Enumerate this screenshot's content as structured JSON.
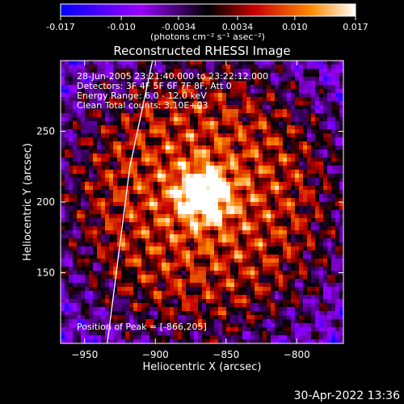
{
  "chart_data": {
    "type": "heatmap",
    "title": "Reconstructed RHESSI Image",
    "xlabel": "Heliocentric X (arcsec)",
    "ylabel": "Heliocentric Y (arcsec)",
    "xlim": [
      -967,
      -767
    ],
    "ylim": [
      100,
      300
    ],
    "xticks": [
      -950,
      -900,
      -850,
      -800
    ],
    "yticks": [
      150,
      200,
      250
    ],
    "colorbar": {
      "ticks": [
        "-0.017",
        "-0.010",
        "-0.0034",
        "0.0034",
        "0.010",
        "0.017"
      ],
      "range": [
        -0.017,
        0.017
      ],
      "unit_label": "(photons cm⁻² s⁻¹ asec⁻²)"
    },
    "annotations": [
      "28-Jun-2005 23:21:40.000 to 23:22:12.000",
      "Detectors: 3F 4F 5F 6F 7F 8F, Att 0",
      "Energy Range: 6.0 - 12.0 keV",
      "Clean     Total counts: 3.10E+03"
    ],
    "peak_label": "Position of Peak = [-866,205]",
    "peak": [
      -866,
      205
    ],
    "limb_points": [
      [
        -934,
        100
      ],
      [
        -918,
        225
      ],
      [
        -902,
        300
      ]
    ],
    "source_sigma_arcsec": 12,
    "colors": {
      "limb": "#ffffff",
      "axes": "#ffffff",
      "background": "#000000"
    }
  },
  "footer": {
    "date": "30-Apr-2022 13:36"
  }
}
